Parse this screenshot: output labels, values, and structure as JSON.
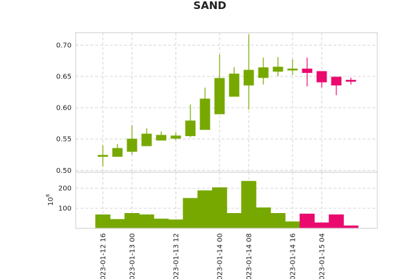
{
  "chart_data": {
    "type": "candlestick",
    "title": "SAND",
    "colors": {
      "up": "#77a800",
      "down": "#ea0a6e"
    },
    "price_panel": {
      "ylim": [
        0.497,
        0.72
      ],
      "yticks": [
        0.5,
        0.55,
        0.6,
        0.65,
        0.7
      ],
      "ytick_labels": [
        "0.50",
        "0.55",
        "0.60",
        "0.65",
        "0.70"
      ]
    },
    "volume_panel": {
      "ylabel": "10^6",
      "ylabel_base": "10",
      "ylabel_exp": "6",
      "ylim": [
        0,
        280
      ],
      "yticks": [
        100,
        200
      ],
      "ytick_labels": [
        "100",
        "200"
      ]
    },
    "xtick_labels": [
      "023-01-12 16",
      "023-01-13 00",
      "023-01-13 12",
      "023-01-14 00",
      "023-01-14 08",
      "023-01-14 16",
      "023-01-15 04"
    ],
    "xtick_indices": [
      0,
      2,
      5,
      8,
      10,
      13,
      15
    ],
    "candles": [
      {
        "open": 0.522,
        "high": 0.54,
        "low": 0.506,
        "close": 0.524,
        "volume": 68
      },
      {
        "open": 0.522,
        "high": 0.542,
        "low": 0.522,
        "close": 0.535,
        "volume": 45
      },
      {
        "open": 0.53,
        "high": 0.572,
        "low": 0.525,
        "close": 0.55,
        "volume": 75
      },
      {
        "open": 0.539,
        "high": 0.567,
        "low": 0.539,
        "close": 0.558,
        "volume": 68
      },
      {
        "open": 0.548,
        "high": 0.562,
        "low": 0.548,
        "close": 0.556,
        "volume": 47
      },
      {
        "open": 0.551,
        "high": 0.56,
        "low": 0.548,
        "close": 0.555,
        "volume": 43
      },
      {
        "open": 0.555,
        "high": 0.605,
        "low": 0.553,
        "close": 0.579,
        "volume": 150
      },
      {
        "open": 0.565,
        "high": 0.632,
        "low": 0.565,
        "close": 0.614,
        "volume": 188
      },
      {
        "open": 0.59,
        "high": 0.685,
        "low": 0.59,
        "close": 0.647,
        "volume": 203
      },
      {
        "open": 0.618,
        "high": 0.665,
        "low": 0.618,
        "close": 0.654,
        "volume": 75
      },
      {
        "open": 0.636,
        "high": 0.717,
        "low": 0.597,
        "close": 0.66,
        "volume": 235
      },
      {
        "open": 0.648,
        "high": 0.68,
        "low": 0.637,
        "close": 0.664,
        "volume": 103
      },
      {
        "open": 0.658,
        "high": 0.681,
        "low": 0.65,
        "close": 0.665,
        "volume": 75
      },
      {
        "open": 0.66,
        "high": 0.677,
        "low": 0.652,
        "close": 0.662,
        "volume": 33
      },
      {
        "open": 0.662,
        "high": 0.68,
        "low": 0.634,
        "close": 0.656,
        "volume": 72
      },
      {
        "open": 0.658,
        "high": 0.658,
        "low": 0.632,
        "close": 0.641,
        "volume": 28
      },
      {
        "open": 0.649,
        "high": 0.649,
        "low": 0.62,
        "close": 0.636,
        "volume": 68
      },
      {
        "open": 0.644,
        "high": 0.648,
        "low": 0.637,
        "close": 0.642,
        "volume": 13
      }
    ]
  }
}
